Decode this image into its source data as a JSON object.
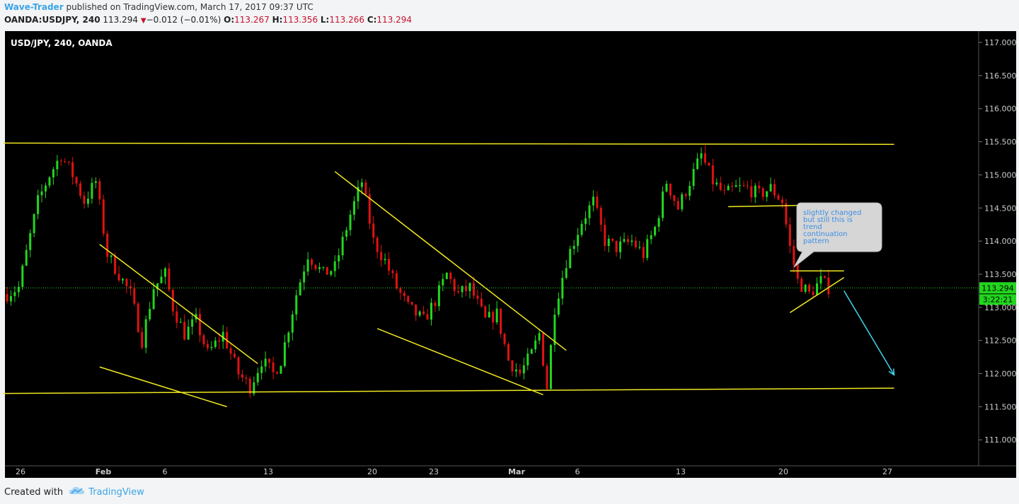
{
  "header": {
    "author": "Wave-Trader",
    "published_text": "published on TradingView.com, March 17, 2017 09:37 UTC",
    "symbol": "OANDA:USDJPY, 240",
    "last": "113.294",
    "change": "−0.012 (−0.01%)",
    "open_label": "O:",
    "open": "113.267",
    "high_label": "H:",
    "high": "113.356",
    "low_label": "L:",
    "low": "113.266",
    "close_label": "C:",
    "close": "113.294"
  },
  "footer": {
    "created_with": "Created with",
    "brand": "TradingView"
  },
  "annotation": {
    "text": [
      "slightly changed",
      "but still this is",
      "trend",
      "continuation",
      "pattern"
    ]
  },
  "colors": {
    "bg": "#000000",
    "up": "#22d61e",
    "down": "#e01212",
    "trendline": "#f0e820",
    "arrow": "#3fd8f0",
    "price_tag": "#22d61e",
    "link": "#3ba4e6"
  },
  "chart_data": {
    "type": "candlestick",
    "title": "USD/JPY, 240, OANDA",
    "ylim": [
      110.6,
      117.1
    ],
    "y_ticks": [
      "117.000",
      "116.500",
      "116.000",
      "115.500",
      "115.000",
      "114.500",
      "114.000",
      "113.500",
      "113.000",
      "112.500",
      "112.000",
      "111.500",
      "111.000"
    ],
    "x_ticks": [
      "26",
      "Feb",
      "6",
      "13",
      "20",
      "23",
      "Mar",
      "6",
      "13",
      "20",
      "27"
    ],
    "last_price_label": "113.294",
    "countdown_label": "3:22:21",
    "last_price": 113.294,
    "close_path": [
      [
        0,
        113.2
      ],
      [
        3,
        113.3
      ],
      [
        8,
        114.6
      ],
      [
        11,
        115.0
      ],
      [
        14,
        115.3
      ],
      [
        17,
        115.0
      ],
      [
        20,
        114.6
      ],
      [
        23,
        114.9
      ],
      [
        26,
        113.8
      ],
      [
        29,
        113.5
      ],
      [
        32,
        113.2
      ],
      [
        35,
        112.5
      ],
      [
        38,
        113.3
      ],
      [
        41,
        113.5
      ],
      [
        43,
        113.0
      ],
      [
        46,
        112.6
      ],
      [
        49,
        112.8
      ],
      [
        52,
        112.3
      ],
      [
        56,
        112.6
      ],
      [
        60,
        112.0
      ],
      [
        63,
        111.8
      ],
      [
        66,
        112.2
      ],
      [
        69,
        112.0
      ],
      [
        71,
        112.2
      ],
      [
        75,
        113.2
      ],
      [
        78,
        113.8
      ],
      [
        82,
        113.5
      ],
      [
        85,
        113.6
      ],
      [
        89,
        114.4
      ],
      [
        92,
        114.9
      ],
      [
        95,
        114.0
      ],
      [
        98,
        113.7
      ],
      [
        101,
        113.3
      ],
      [
        104,
        113.0
      ],
      [
        108,
        112.8
      ],
      [
        111,
        113.1
      ],
      [
        114,
        113.5
      ],
      [
        117,
        113.2
      ],
      [
        120,
        113.3
      ],
      [
        124,
        112.8
      ],
      [
        127,
        112.9
      ],
      [
        130,
        112.2
      ],
      [
        133,
        112.0
      ],
      [
        136,
        112.3
      ],
      [
        138,
        112.6
      ],
      [
        140,
        111.8
      ],
      [
        142,
        113.0
      ],
      [
        145,
        113.7
      ],
      [
        149,
        114.3
      ],
      [
        152,
        114.6
      ],
      [
        155,
        114.0
      ],
      [
        158,
        113.9
      ],
      [
        162,
        114.0
      ],
      [
        165,
        113.8
      ],
      [
        168,
        114.2
      ],
      [
        171,
        114.9
      ],
      [
        174,
        114.5
      ],
      [
        177,
        114.9
      ],
      [
        180,
        115.3
      ],
      [
        183,
        114.9
      ],
      [
        186,
        114.7
      ],
      [
        189,
        114.8
      ],
      [
        192,
        114.8
      ],
      [
        195,
        114.7
      ],
      [
        198,
        114.8
      ],
      [
        201,
        114.6
      ],
      [
        203,
        113.9
      ],
      [
        205,
        113.4
      ],
      [
        208,
        113.2
      ],
      [
        211,
        113.4
      ],
      [
        213,
        113.3
      ]
    ],
    "up_count": 214,
    "levels": [
      {
        "name": "resistance",
        "x": [
          -1,
          230
        ],
        "y": [
          115.48,
          115.46
        ]
      },
      {
        "name": "support",
        "x": [
          -1,
          230
        ],
        "y": [
          111.7,
          111.78
        ]
      }
    ],
    "trendlines": [
      {
        "x": [
          24,
          65
        ],
        "y": [
          113.95,
          112.15
        ]
      },
      {
        "x": [
          24,
          57
        ],
        "y": [
          112.1,
          111.5
        ]
      },
      {
        "x": [
          85,
          145
        ],
        "y": [
          115.05,
          112.35
        ]
      },
      {
        "x": [
          96,
          139
        ],
        "y": [
          112.68,
          111.68
        ]
      },
      {
        "x": [
          187,
          206
        ],
        "y": [
          114.52,
          114.54
        ]
      },
      {
        "x": [
          203,
          217
        ],
        "y": [
          113.55,
          113.55
        ]
      },
      {
        "x": [
          203,
          217
        ],
        "y": [
          112.92,
          113.45
        ]
      }
    ],
    "arrow": {
      "x": [
        217,
        230
      ],
      "y": [
        113.25,
        111.98
      ]
    }
  }
}
